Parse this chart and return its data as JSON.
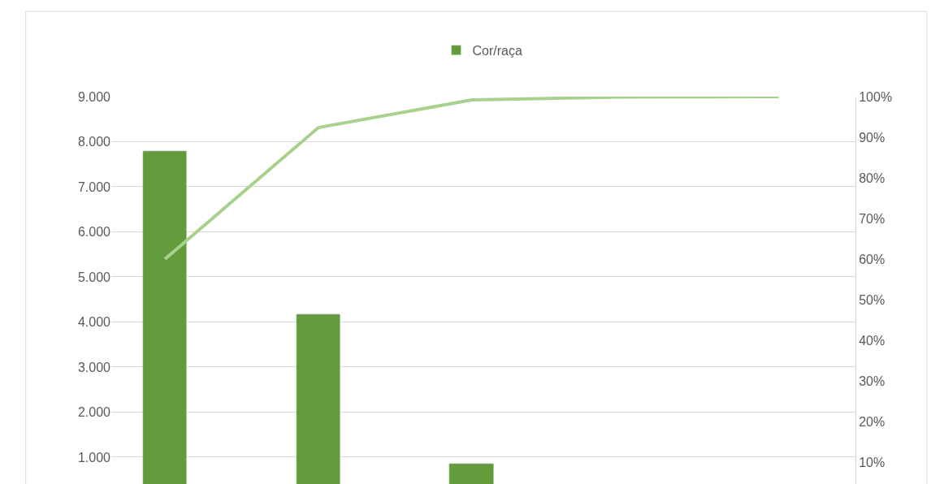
{
  "chart_data": {
    "type": "bar",
    "categories": [
      null,
      null,
      null,
      null,
      null
    ],
    "series": [
      {
        "name": "Cor/raça",
        "color": "#629b3c",
        "values": [
          7800,
          4170,
          860,
          null,
          null
        ]
      },
      {
        "type": "line",
        "axis": "y2",
        "color": "#a9d18e",
        "values": [
          60,
          92.4,
          99.2,
          99.9,
          100
        ]
      }
    ],
    "ylim": [
      405,
      9000
    ],
    "yticks": [
      {
        "value": 1000,
        "label": "1.000"
      },
      {
        "value": 2000,
        "label": "2.000"
      },
      {
        "value": 3000,
        "label": "3.000"
      },
      {
        "value": 4000,
        "label": "4.000"
      },
      {
        "value": 5000,
        "label": "5.000"
      },
      {
        "value": 6000,
        "label": "6.000"
      },
      {
        "value": 7000,
        "label": "7.000"
      },
      {
        "value": 8000,
        "label": "8.000"
      },
      {
        "value": 9000,
        "label": "9.000"
      }
    ],
    "y2lim": [
      4.6,
      100
    ],
    "y2ticks": [
      {
        "value": 10,
        "label": "10%"
      },
      {
        "value": 20,
        "label": "20%"
      },
      {
        "value": 30,
        "label": "30%"
      },
      {
        "value": 40,
        "label": "40%"
      },
      {
        "value": 50,
        "label": "50%"
      },
      {
        "value": 60,
        "label": "60%"
      },
      {
        "value": 70,
        "label": "70%"
      },
      {
        "value": 80,
        "label": "80%"
      },
      {
        "value": 90,
        "label": "90%"
      },
      {
        "value": 100,
        "label": "100%"
      }
    ],
    "grid": "y",
    "legend": "top",
    "marker": "none",
    "line_style": "solid"
  }
}
